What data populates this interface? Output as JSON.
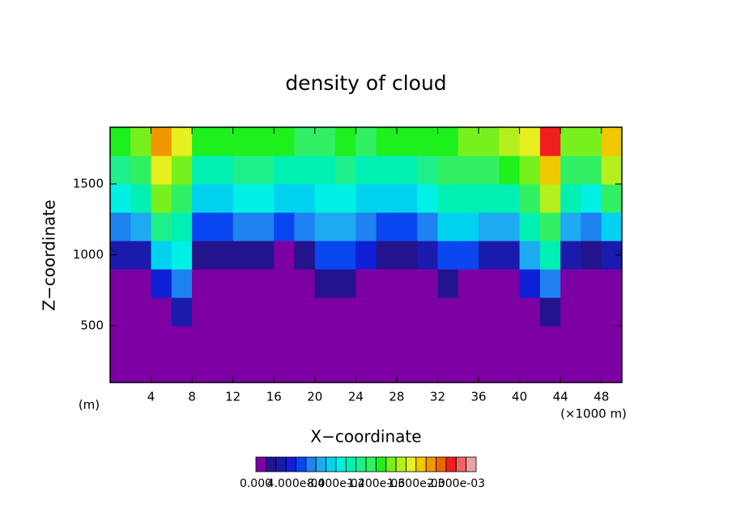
{
  "chart_data": {
    "type": "contour",
    "title": "density of cloud",
    "xlabel": "X−coordinate",
    "ylabel": "Z−coordinate",
    "y_unit": "(m)",
    "x_unit": "(×1000 m)",
    "xlim": [
      0,
      50
    ],
    "ylim": [
      100,
      1900
    ],
    "xticks": [
      4,
      8,
      12,
      16,
      20,
      24,
      28,
      32,
      36,
      40,
      44,
      48
    ],
    "yticks": [
      500,
      1000,
      1500
    ],
    "x": [
      1,
      3,
      5,
      7,
      9,
      11,
      13,
      15,
      17,
      19,
      21,
      23,
      25,
      27,
      29,
      31,
      33,
      35,
      37,
      39,
      41,
      43,
      45,
      47,
      49
    ],
    "z": [
      200,
      400,
      600,
      800,
      1000,
      1200,
      1400,
      1600,
      1800
    ],
    "values": [
      [
        0,
        0,
        0,
        0,
        0.0002,
        0.0005,
        0.0008,
        0.001,
        0.0012
      ],
      [
        0,
        0,
        0,
        0,
        0.0002,
        0.0006,
        0.0009,
        0.0011,
        0.0013
      ],
      [
        0,
        0,
        0,
        0.0003,
        0.0007,
        0.001,
        0.0013,
        0.0015,
        0.0017
      ],
      [
        0,
        0,
        0.0002,
        0.0005,
        0.0008,
        0.0009,
        0.0011,
        0.0013,
        0.0015
      ],
      [
        0,
        0,
        0,
        0,
        0.0001,
        0.0004,
        0.0007,
        0.0009,
        0.0012
      ],
      [
        0,
        0,
        0,
        0,
        0.0001,
        0.0004,
        0.0007,
        0.0009,
        0.0012
      ],
      [
        0,
        0,
        0,
        0,
        0.0001,
        0.0005,
        0.0008,
        0.001,
        0.0012
      ],
      [
        0,
        0,
        0,
        0,
        0.0001,
        0.0005,
        0.0008,
        0.001,
        0.0012
      ],
      [
        0,
        0,
        0,
        0,
        0,
        0.0004,
        0.0007,
        0.0009,
        0.0012
      ],
      [
        0,
        0,
        0,
        0,
        0.0001,
        0.0005,
        0.0007,
        0.0009,
        0.0011
      ],
      [
        0,
        0,
        0,
        0.0001,
        0.0004,
        0.0006,
        0.0008,
        0.0009,
        0.0011
      ],
      [
        0,
        0,
        0,
        0.0001,
        0.0004,
        0.0006,
        0.0008,
        0.001,
        0.0012
      ],
      [
        0,
        0,
        0,
        0,
        0.0003,
        0.0005,
        0.0007,
        0.0009,
        0.0011
      ],
      [
        0,
        0,
        0,
        0,
        0.0001,
        0.0004,
        0.0007,
        0.0009,
        0.0012
      ],
      [
        0,
        0,
        0,
        0,
        0.0001,
        0.0004,
        0.0007,
        0.0009,
        0.0012
      ],
      [
        0,
        0,
        0,
        0,
        0.0002,
        0.0005,
        0.0008,
        0.001,
        0.0012
      ],
      [
        0,
        0,
        0,
        0.0001,
        0.0004,
        0.0007,
        0.0009,
        0.0011,
        0.0012
      ],
      [
        0,
        0,
        0,
        0,
        0.0004,
        0.0007,
        0.0009,
        0.0011,
        0.0013
      ],
      [
        0,
        0,
        0,
        0,
        0.0002,
        0.0006,
        0.0009,
        0.0011,
        0.0013
      ],
      [
        0,
        0,
        0,
        0,
        0.0002,
        0.0006,
        0.0009,
        0.0012,
        0.0014
      ],
      [
        0,
        0,
        0,
        0.0003,
        0.0006,
        0.0009,
        0.0011,
        0.0013,
        0.0015
      ],
      [
        0,
        0,
        0.0001,
        0.0005,
        0.0009,
        0.0011,
        0.0014,
        0.0016,
        0.0019
      ],
      [
        0,
        0,
        0,
        0,
        0.0002,
        0.0006,
        0.0009,
        0.0011,
        0.0013
      ],
      [
        0,
        0,
        0,
        0,
        0.0001,
        0.0005,
        0.0008,
        0.0011,
        0.0013
      ],
      [
        0,
        0,
        0,
        0,
        0.0002,
        0.0007,
        0.0011,
        0.0014,
        0.0016
      ]
    ],
    "clim": [
      0,
      0.0022
    ],
    "colors": [
      "#7c00a3",
      "#23138c",
      "#1a1aad",
      "#0f1fd6",
      "#0a46f0",
      "#1e82f0",
      "#1eaaf0",
      "#00d2f0",
      "#00f0e6",
      "#00f0b4",
      "#1ef08c",
      "#32f064",
      "#1ef01e",
      "#78f01e",
      "#b4f01e",
      "#e6f01e",
      "#f0c800",
      "#f09600",
      "#f06400",
      "#f01e1e",
      "#f06464",
      "#f0a0a0"
    ],
    "colorbar_ticks": [
      {
        "value": 0,
        "label": "0.000"
      },
      {
        "value": 0.0004,
        "label": "4.000e-04"
      },
      {
        "value": 0.0008,
        "label": "8.000e-04"
      },
      {
        "value": 0.0012,
        "label": "1.200e-03"
      },
      {
        "value": 0.0016,
        "label": "1.600e-03"
      },
      {
        "value": 0.002,
        "label": "2.000e-03"
      }
    ]
  }
}
